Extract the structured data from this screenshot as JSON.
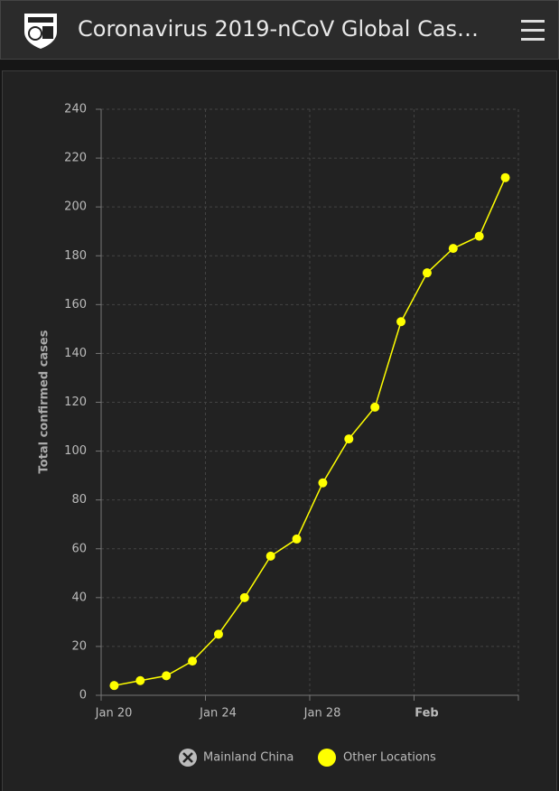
{
  "header": {
    "title": "Coronavirus 2019-nCoV Global Cas…"
  },
  "chart_data": {
    "type": "line",
    "y_label": "Total confirmed cases",
    "categories": [
      "Jan 20",
      null,
      null,
      null,
      "Jan 24",
      null,
      null,
      null,
      "Jan 28",
      null,
      null,
      null,
      "Feb",
      null,
      null,
      null
    ],
    "series": [
      {
        "name": "Other Locations",
        "color": "#ffff00",
        "values": [
          4,
          6,
          8,
          14,
          25,
          40,
          57,
          64,
          87,
          105,
          118,
          153,
          173,
          183,
          188,
          212
        ]
      }
    ],
    "hidden_series": [
      {
        "name": "Mainland China"
      }
    ],
    "ylim": [
      0,
      240
    ],
    "yticks": [
      0,
      20,
      40,
      60,
      80,
      100,
      120,
      140,
      160,
      180,
      200,
      220,
      240
    ],
    "grid": true
  }
}
